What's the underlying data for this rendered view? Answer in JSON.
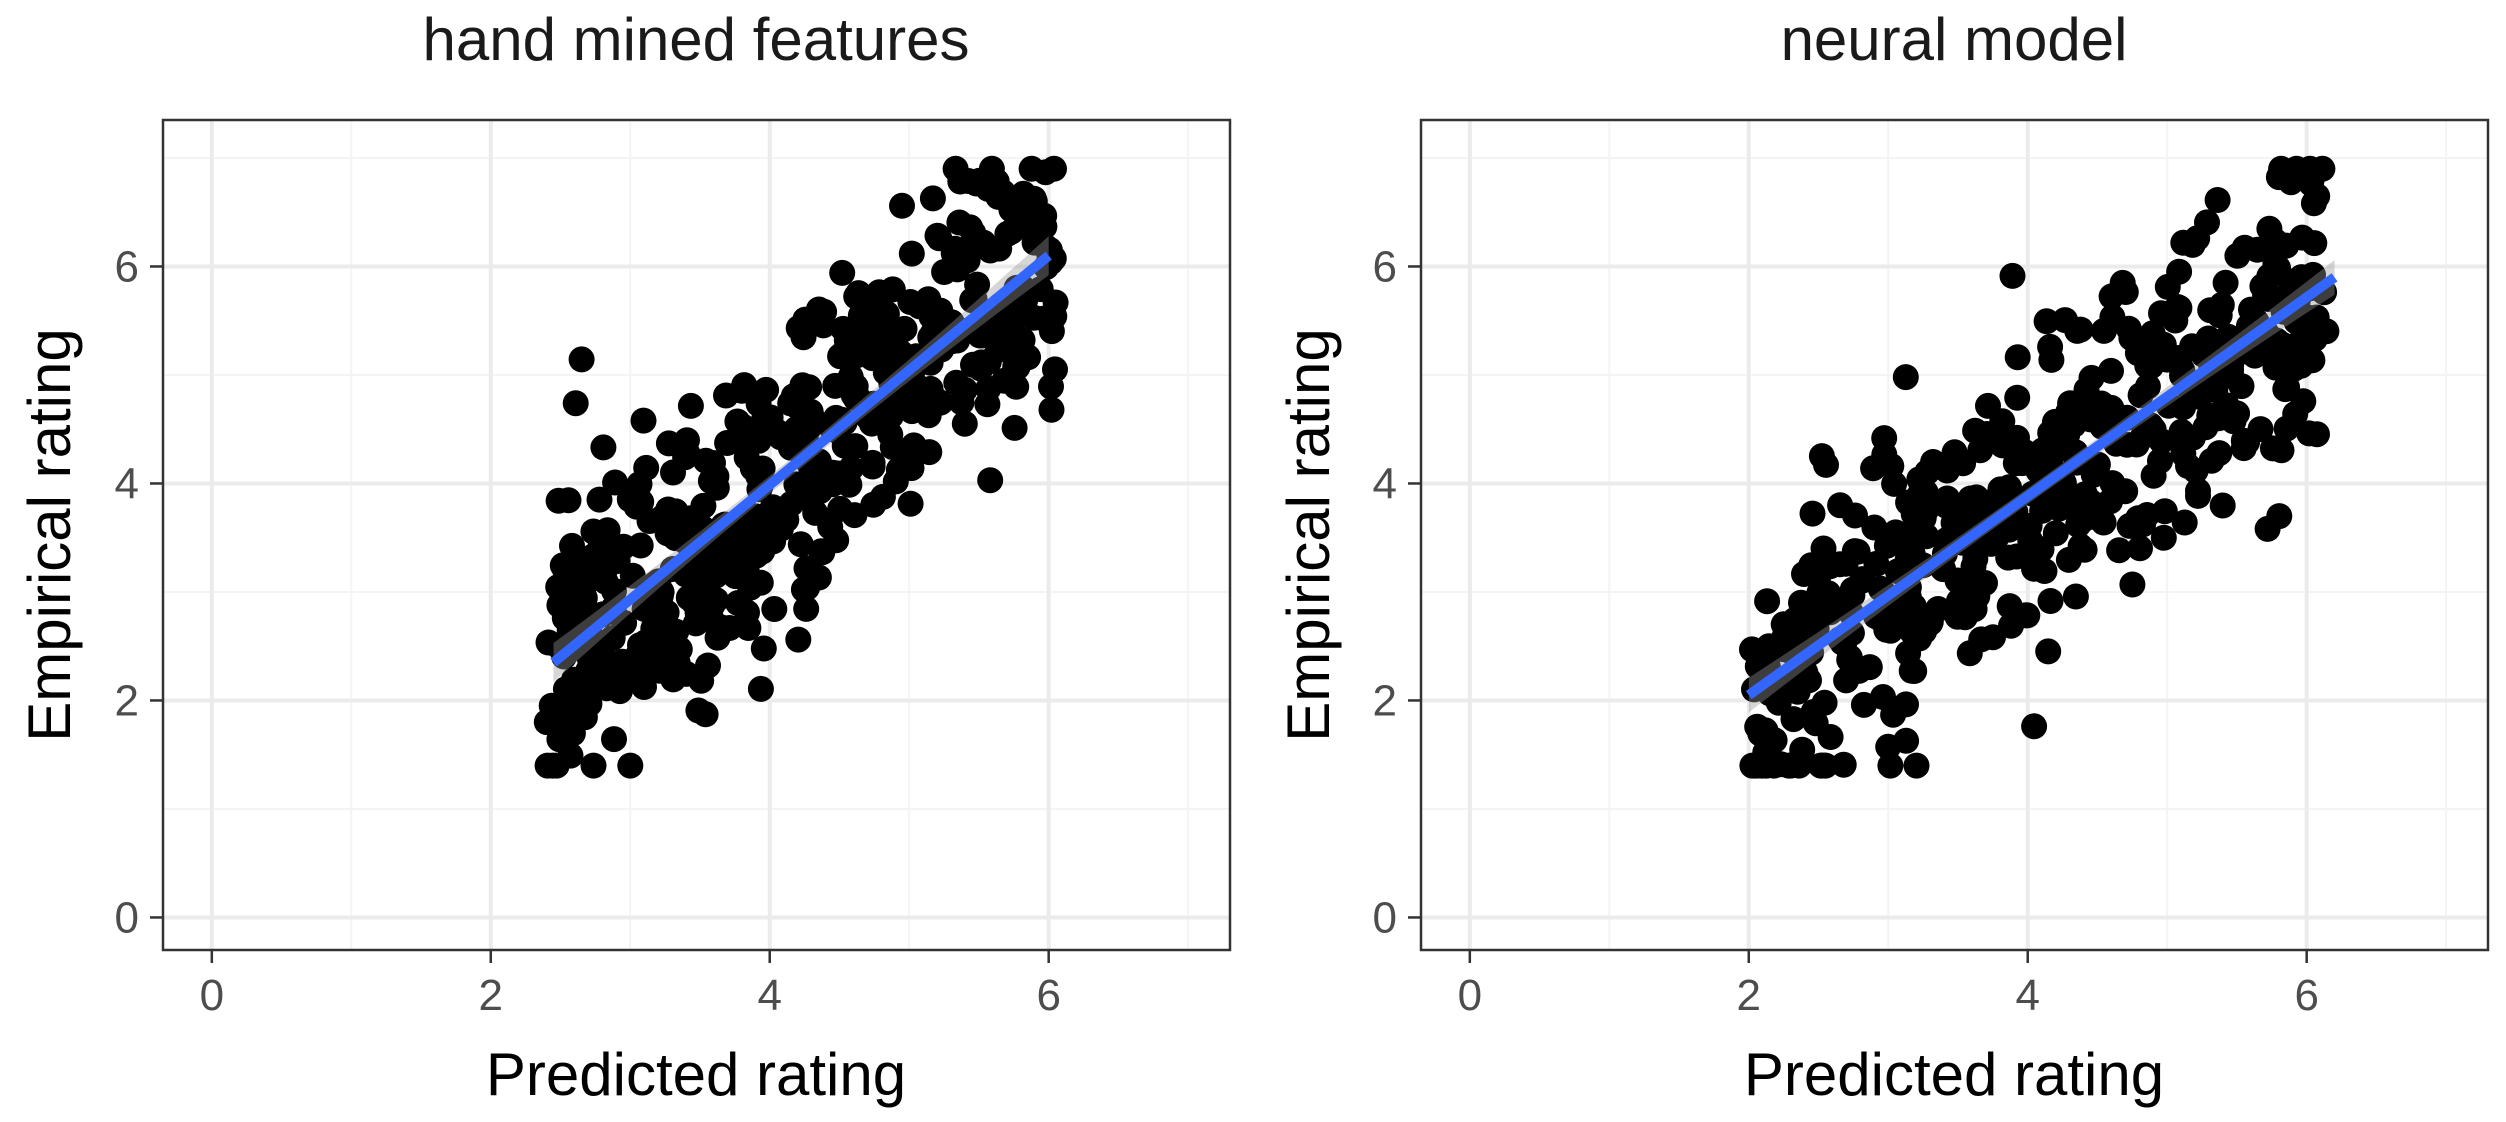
{
  "figure": {
    "background": "#ffffff"
  },
  "style": {
    "point_color": "#000000",
    "fit_color": "#3366FF",
    "band_color": "#999999",
    "panel_border": "#333333",
    "major_grid": "#EBEBEB",
    "minor_grid": "#F4F4F4"
  },
  "chart_data": [
    {
      "type": "scatter",
      "title": "hand mined features",
      "xlabel": "Predicted rating",
      "ylabel": "Empirical rating",
      "xlim": [
        -0.35,
        7.3
      ],
      "ylim": [
        -0.3,
        7.35
      ],
      "xticks": [
        0,
        2,
        4,
        6
      ],
      "yticks": [
        0,
        2,
        4,
        6
      ],
      "grid": true,
      "legend": "none",
      "regression": {
        "x": [
          2.45,
          6.0
        ],
        "y": [
          2.35,
          6.1
        ],
        "band": 0.18
      },
      "points": {
        "count": 480,
        "x_range": [
          2.4,
          6.05
        ],
        "slope": 1.05,
        "intercept": -0.2,
        "noise_sd": 0.72,
        "y_range": [
          1.4,
          6.9
        ],
        "seed": 11
      }
    },
    {
      "type": "scatter",
      "title": "neural model",
      "xlabel": "Predicted rating",
      "ylabel": "Empirical rating",
      "xlim": [
        -0.35,
        7.3
      ],
      "ylim": [
        -0.3,
        7.35
      ],
      "xticks": [
        0,
        2,
        4,
        6
      ],
      "yticks": [
        0,
        2,
        4,
        6
      ],
      "grid": true,
      "legend": "none",
      "regression": {
        "x": [
          2.0,
          6.2
        ],
        "y": [
          2.05,
          5.9
        ],
        "band": 0.16
      },
      "points": {
        "count": 480,
        "x_range": [
          2.0,
          6.2
        ],
        "slope": 0.92,
        "intercept": 0.2,
        "noise_sd": 0.72,
        "y_range": [
          1.4,
          6.9
        ],
        "seed": 29
      }
    }
  ]
}
